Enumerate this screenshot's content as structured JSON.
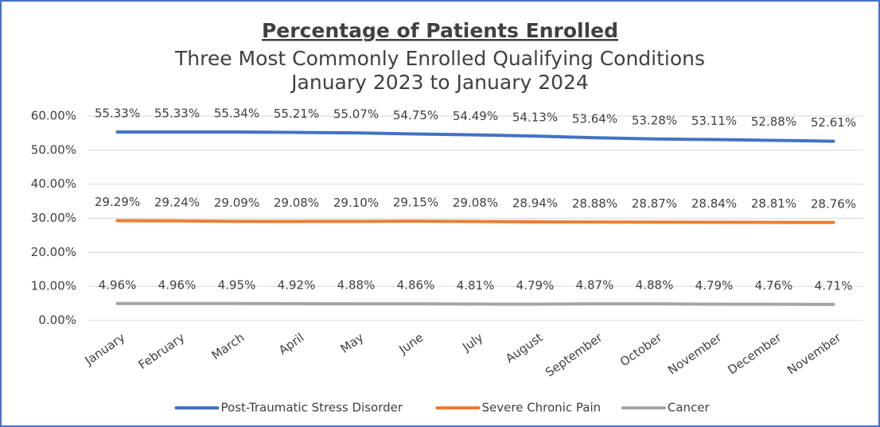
{
  "chart_data": {
    "type": "line",
    "title": "Percentage of Patients Enrolled",
    "subtitle": [
      "Three Most Commonly Enrolled Qualifying Conditions",
      "January 2023 to January 2024"
    ],
    "categories": [
      "January",
      "February",
      "March",
      "April",
      "May",
      "June",
      "July",
      "August",
      "September",
      "October",
      "November",
      "December",
      "November"
    ],
    "series": [
      {
        "name": "Post-Traumatic Stress Disorder",
        "color": "#4472c4",
        "values": [
          55.33,
          55.33,
          55.34,
          55.21,
          55.07,
          54.75,
          54.49,
          54.13,
          53.64,
          53.28,
          53.11,
          52.88,
          52.61
        ],
        "value_labels": [
          "55.33%",
          "55.33%",
          "55.34%",
          "55.21%",
          "55.07%",
          "54.75%",
          "54.49%",
          "54.13%",
          "53.64%",
          "53.28%",
          "53.11%",
          "52.88%",
          "52.61%"
        ]
      },
      {
        "name": "Severe Chronic Pain",
        "color": "#ed7d31",
        "values": [
          29.29,
          29.24,
          29.09,
          29.08,
          29.1,
          29.15,
          29.08,
          28.94,
          28.88,
          28.87,
          28.84,
          28.81,
          28.76
        ],
        "value_labels": [
          "29.29%",
          "29.24%",
          "29.09%",
          "29.08%",
          "29.10%",
          "29.15%",
          "29.08%",
          "28.94%",
          "28.88%",
          "28.87%",
          "28.84%",
          "28.81%",
          "28.76%"
        ]
      },
      {
        "name": "Cancer",
        "color": "#a5a5a5",
        "values": [
          4.96,
          4.96,
          4.95,
          4.92,
          4.88,
          4.86,
          4.81,
          4.79,
          4.87,
          4.88,
          4.79,
          4.76,
          4.71
        ],
        "value_labels": [
          "4.96%",
          "4.96%",
          "4.95%",
          "4.92%",
          "4.88%",
          "4.86%",
          "4.81%",
          "4.79%",
          "4.87%",
          "4.88%",
          "4.79%",
          "4.76%",
          "4.71%"
        ]
      }
    ],
    "ylim": [
      0,
      60
    ],
    "yticks": [
      {
        "value": 0,
        "label": "0.00%"
      },
      {
        "value": 10,
        "label": "10.00%"
      },
      {
        "value": 20,
        "label": "20.00%"
      },
      {
        "value": 30,
        "label": "30.00%"
      },
      {
        "value": 40,
        "label": "40.00%"
      },
      {
        "value": 50,
        "label": "50.00%"
      },
      {
        "value": 60,
        "label": "60.00%"
      }
    ],
    "grid": true,
    "legend": "bottom"
  }
}
